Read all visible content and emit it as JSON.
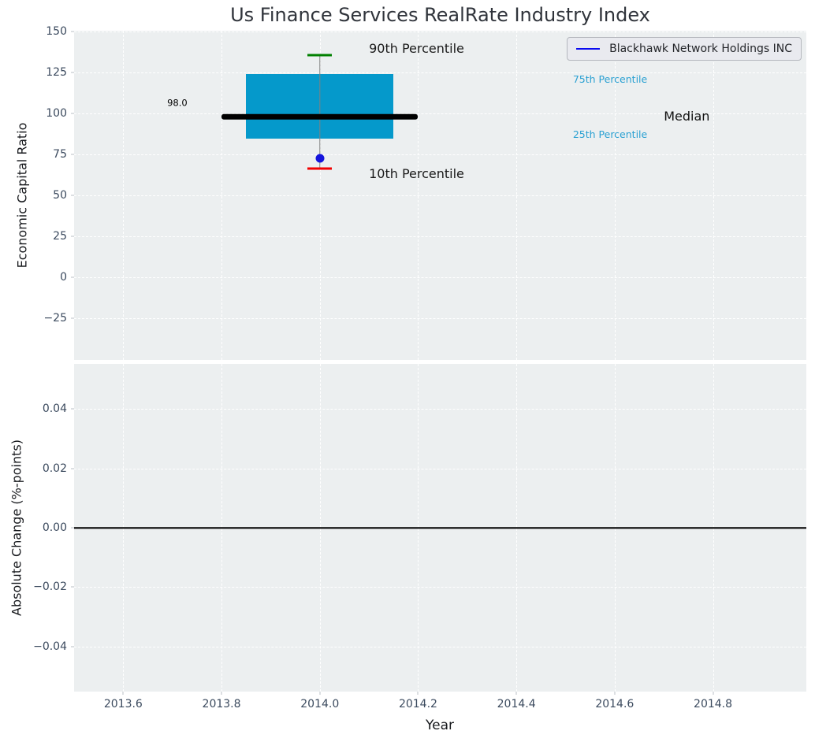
{
  "figure": {
    "title": "Us Finance Services RealRate Industry Index",
    "legend": {
      "label": "Blackhawk Network Holdings INC",
      "line_color": "#0a0af0"
    }
  },
  "chart_data": [
    {
      "type": "box",
      "panel": "top",
      "title": "Us Finance Services RealRate Industry Index",
      "ylabel": "Economic Capital Ratio",
      "xlim": [
        2013.5,
        2014.99
      ],
      "ylim": [
        -50.5,
        150.5
      ],
      "grid": true,
      "plot_bg": "#ECEFF0",
      "grid_color": "#ffffff",
      "show_xtick_labels": false,
      "yticks": [
        {
          "v": 150,
          "label": "150"
        },
        {
          "v": 125,
          "label": "125"
        },
        {
          "v": 100,
          "label": "100"
        },
        {
          "v": 75,
          "label": "75"
        },
        {
          "v": 50,
          "label": "50"
        },
        {
          "v": 25,
          "label": "25"
        },
        {
          "v": 0,
          "label": "0"
        },
        {
          "v": -25,
          "label": "−25"
        }
      ],
      "xticks": [
        {
          "v": 2013.6,
          "label": "2013.6"
        },
        {
          "v": 2013.8,
          "label": "2013.8"
        },
        {
          "v": 2014.0,
          "label": "2014.0"
        },
        {
          "v": 2014.2,
          "label": "2014.2"
        },
        {
          "v": 2014.4,
          "label": "2014.4"
        },
        {
          "v": 2014.6,
          "label": "2014.6"
        },
        {
          "v": 2014.8,
          "label": "2014.8"
        }
      ],
      "box": {
        "x": 2014.0,
        "p10": 66.5,
        "p25": 84.5,
        "median": 98.0,
        "p75": 124.0,
        "p90": 135.5,
        "company_value": 72.5,
        "box_half_width": 0.15,
        "median_half_width": 0.2,
        "cap_half_width": 0.025,
        "colors": {
          "box": "#0599CB",
          "median": "#000000",
          "p90_cap": "#008000",
          "p10_cap": "#F20000",
          "company_dot": "#1414DC",
          "whisker": "#808080"
        }
      },
      "annotations": [
        {
          "text": "98.0",
          "x": 2013.71,
          "y": 106.5,
          "color": "#000000",
          "size": 11.5,
          "ha": "center"
        },
        {
          "text": "90th Percentile",
          "x": 2014.1,
          "y": 139.5,
          "color": "#1a1a1a",
          "size": 16,
          "ha": "left"
        },
        {
          "text": "10th Percentile",
          "x": 2014.1,
          "y": 63.0,
          "color": "#1a1a1a",
          "size": 16,
          "ha": "left"
        },
        {
          "text": "75th Percentile",
          "x": 2014.515,
          "y": 120.5,
          "color": "#29A0D2",
          "size": 12.5,
          "ha": "left"
        },
        {
          "text": "25th Percentile",
          "x": 2014.515,
          "y": 87.0,
          "color": "#29A0D2",
          "size": 12.5,
          "ha": "left"
        },
        {
          "text": "Median",
          "x": 2014.7,
          "y": 98.3,
          "color": "#111111",
          "size": 16,
          "ha": "left"
        }
      ],
      "legend_entries": [
        {
          "label": "Blackhawk Network Holdings INC",
          "color": "#0a0af0",
          "position": "upper right"
        }
      ]
    },
    {
      "type": "line",
      "panel": "bottom",
      "ylabel": "Absolute Change (%-points)",
      "xlabel": "Year",
      "xlim": [
        2013.5,
        2014.99
      ],
      "ylim": [
        -0.0552,
        0.0552
      ],
      "grid": true,
      "plot_bg": "#ECEFF0",
      "grid_color": "#ffffff",
      "show_xtick_labels": true,
      "yticks": [
        {
          "v": 0.04,
          "label": "0.04"
        },
        {
          "v": 0.02,
          "label": "0.02"
        },
        {
          "v": 0.0,
          "label": "0.00"
        },
        {
          "v": -0.02,
          "label": "−0.02"
        },
        {
          "v": -0.04,
          "label": "−0.04"
        }
      ],
      "xticks": [
        {
          "v": 2013.6,
          "label": "2013.6"
        },
        {
          "v": 2013.8,
          "label": "2013.8"
        },
        {
          "v": 2014.0,
          "label": "2014.0"
        },
        {
          "v": 2014.2,
          "label": "2014.2"
        },
        {
          "v": 2014.4,
          "label": "2014.4"
        },
        {
          "v": 2014.6,
          "label": "2014.6"
        },
        {
          "v": 2014.8,
          "label": "2014.8"
        }
      ],
      "zero_line": {
        "y": 0.0,
        "color": "#000000"
      }
    }
  ]
}
